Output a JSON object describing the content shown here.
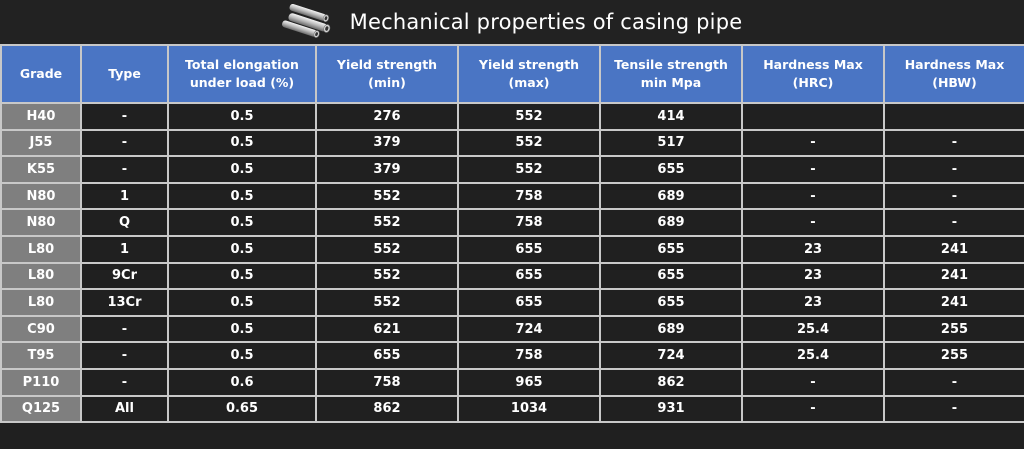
{
  "title": "Mechanical properties of casing pipe",
  "icon": "pipes-icon",
  "colors": {
    "header_bg": "#4a75c4",
    "cell_bg": "#202020",
    "grade_bg": "#7f7f7f",
    "grid": "#c8c8c8"
  },
  "table": {
    "headers": [
      [
        "Grade"
      ],
      [
        "Type"
      ],
      [
        "Total elongation",
        "under load (%)"
      ],
      [
        "Yield strength",
        "(min)"
      ],
      [
        "Yield strength",
        "(max)"
      ],
      [
        "Tensile strength",
        "min Mpa"
      ],
      [
        "Hardness Max",
        "(HRC)"
      ],
      [
        "Hardness Max",
        "(HBW)"
      ]
    ],
    "rows": [
      [
        "H40",
        "-",
        "0.5",
        "276",
        "552",
        "414",
        "",
        ""
      ],
      [
        "J55",
        "-",
        "0.5",
        "379",
        "552",
        "517",
        "-",
        "-"
      ],
      [
        "K55",
        "-",
        "0.5",
        "379",
        "552",
        "655",
        "-",
        "-"
      ],
      [
        "N80",
        "1",
        "0.5",
        "552",
        "758",
        "689",
        "-",
        "-"
      ],
      [
        "N80",
        "Q",
        "0.5",
        "552",
        "758",
        "689",
        "-",
        "-"
      ],
      [
        "L80",
        "1",
        "0.5",
        "552",
        "655",
        "655",
        "23",
        "241"
      ],
      [
        "L80",
        "9Cr",
        "0.5",
        "552",
        "655",
        "655",
        "23",
        "241"
      ],
      [
        "L80",
        "13Cr",
        "0.5",
        "552",
        "655",
        "655",
        "23",
        "241"
      ],
      [
        "C90",
        "-",
        "0.5",
        "621",
        "724",
        "689",
        "25.4",
        "255"
      ],
      [
        "T95",
        "-",
        "0.5",
        "655",
        "758",
        "724",
        "25.4",
        "255"
      ],
      [
        "P110",
        "-",
        "0.6",
        "758",
        "965",
        "862",
        "-",
        "-"
      ],
      [
        "Q125",
        "All",
        "0.65",
        "862",
        "1034",
        "931",
        "-",
        "-"
      ]
    ]
  }
}
